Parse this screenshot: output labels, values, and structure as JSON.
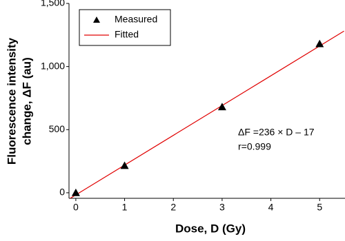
{
  "chart_data": {
    "type": "scatter",
    "xlabel": "Dose, D (Gy)",
    "ylabel": [
      "Fluorescence intensity",
      "change, ΔF (au)"
    ],
    "series": [
      {
        "name": "Measured",
        "color": "#000000",
        "marker": "triangle",
        "x": [
          0,
          1,
          3,
          5
        ],
        "values": [
          0,
          215,
          680,
          1180
        ]
      },
      {
        "name": "Fitted",
        "color": "#e00000",
        "marker": "line",
        "x": [
          -0.15,
          5.5
        ],
        "values": [
          -52.4,
          1281
        ]
      }
    ],
    "annotations": [
      "ΔF =236 × D – 17",
      "r=0.999"
    ],
    "xlim": [
      -0.14,
      5.52
    ],
    "xticks": [
      0,
      1,
      2,
      3,
      4,
      5
    ],
    "ylim": [
      -44,
      1500
    ],
    "yticks": [
      0,
      500,
      {
        "value": 1000,
        "label": "1,000"
      },
      {
        "value": 1500,
        "label": "1,500"
      }
    ],
    "legend": "upper-left"
  }
}
